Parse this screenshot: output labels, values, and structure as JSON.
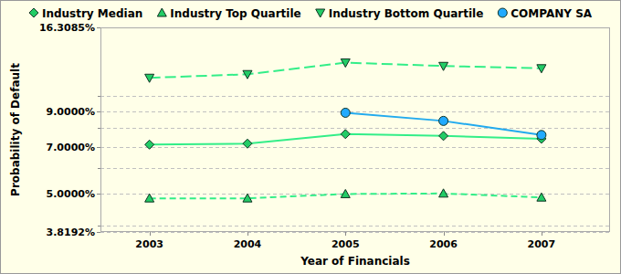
{
  "chart_data": {
    "type": "line",
    "x_label": "Year of Financials",
    "y_label": "Probability of Default",
    "x": [
      2003,
      2004,
      2005,
      2006,
      2007
    ],
    "xlim": [
      2002.5,
      2007.7
    ],
    "xticks": [
      2003,
      2004,
      2005,
      2006,
      2007
    ],
    "ylim": [
      3.8192,
      16.3085
    ],
    "yticks": [
      {
        "value": 3.8192,
        "label": "3.8192%"
      },
      {
        "value": 5,
        "label": "5.0000%"
      },
      {
        "value": 7,
        "label": "7.0000%"
      },
      {
        "value": 9,
        "label": "9.0000%"
      },
      {
        "value": 16.3085,
        "label": "16.3085%"
      }
    ],
    "yminor": [
      4,
      6,
      8,
      10
    ],
    "log": "y",
    "grid": true,
    "legend": "top",
    "series": [
      {
        "name": "Industry Median",
        "color": "#33ee88",
        "marker": "diamond",
        "line_style": "solid",
        "values": [
          7.1,
          7.15,
          7.65,
          7.55,
          7.4
        ]
      },
      {
        "name": "Industry Top Quartile",
        "color": "#33ee88",
        "marker": "triangle-up",
        "line_style": "dashed",
        "values": [
          4.85,
          4.85,
          5.0,
          5.02,
          4.88
        ]
      },
      {
        "name": "Industry Bottom Quartile",
        "color": "#33ee88",
        "marker": "triangle-down",
        "line_style": "long-dashed",
        "values": [
          11.4,
          11.7,
          12.7,
          12.4,
          12.2
        ]
      },
      {
        "name": "COMPANY SA",
        "color": "#22aaee",
        "marker": "circle",
        "line_style": "solid",
        "values": [
          null,
          null,
          8.9,
          8.4,
          7.6
        ]
      }
    ]
  }
}
